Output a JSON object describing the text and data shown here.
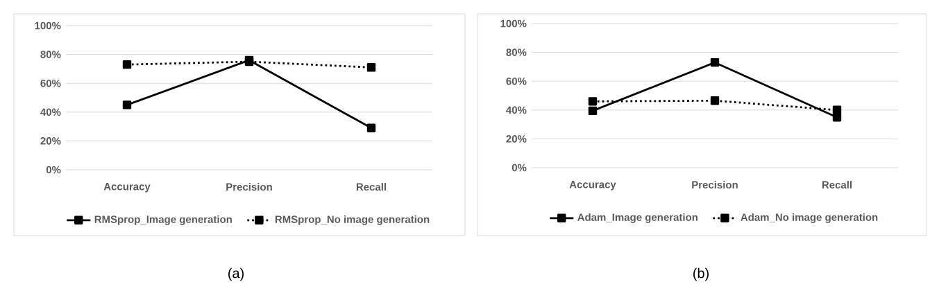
{
  "chart_data": [
    {
      "type": "line",
      "categories": [
        "Accuracy",
        "Precision",
        "Recall"
      ],
      "series": [
        {
          "name": "RMSprop_Image generation",
          "color": "#000000",
          "values": [
            45,
            76,
            29
          ],
          "line_style": "solid"
        },
        {
          "name": "RMSprop_No image generation",
          "color": "#000000",
          "values": [
            73,
            75,
            71
          ],
          "line_style": "dotted"
        }
      ],
      "ylim": [
        0,
        100
      ],
      "yticks": [
        {
          "value": 0,
          "label": "0%"
        },
        {
          "value": 20,
          "label": "20%"
        },
        {
          "value": 40,
          "label": "40%"
        },
        {
          "value": 60,
          "label": "60%"
        },
        {
          "value": 80,
          "label": "80%"
        },
        {
          "value": 100,
          "label": "100%"
        }
      ],
      "grid": "y",
      "legend": "bottom",
      "marker": "square",
      "annotations": [
        "(a)"
      ]
    },
    {
      "type": "line",
      "categories": [
        "Accuracy",
        "Precision",
        "Recall"
      ],
      "series": [
        {
          "name": "Adam_Image generation",
          "color": "#000000",
          "values": [
            39.5,
            73,
            35
          ],
          "line_style": "solid"
        },
        {
          "name": "Adam_No image generation",
          "color": "#000000",
          "values": [
            46,
            46.5,
            40
          ],
          "line_style": "dotted"
        }
      ],
      "ylim": [
        0,
        100
      ],
      "yticks": [
        {
          "value": 0,
          "label": "0%"
        },
        {
          "value": 20,
          "label": "20%"
        },
        {
          "value": 40,
          "label": "40%"
        },
        {
          "value": 60,
          "label": "60%"
        },
        {
          "value": 80,
          "label": "80%"
        },
        {
          "value": 100,
          "label": "100%"
        }
      ],
      "grid": "y",
      "legend": "bottom",
      "marker": "square",
      "annotations": [
        "(b)"
      ]
    }
  ]
}
